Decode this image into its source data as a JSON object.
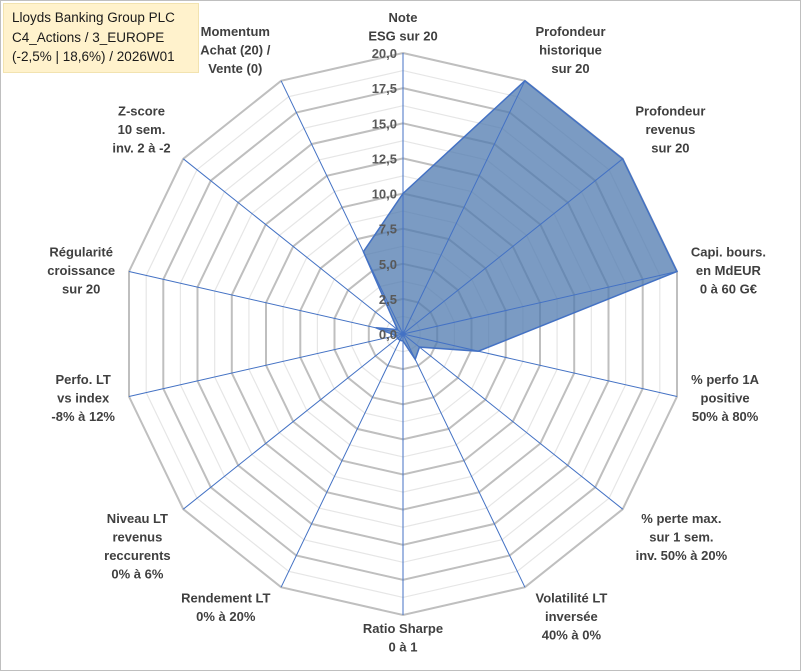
{
  "title": {
    "lines": [
      "Lloyds Banking Group PLC",
      "C4_Actions / 3_EUROPE",
      "(-2,5% | 18,6%) / 2026W01"
    ]
  },
  "chart_data": {
    "type": "radar",
    "rmin": 0,
    "rmax": 20,
    "ticks": [
      "0,0",
      "2,5",
      "5,0",
      "7,5",
      "10,0",
      "12,5",
      "15,0",
      "17,5",
      "20,0"
    ],
    "axes": [
      {
        "label": [
          "Note",
          "ESG sur 20"
        ],
        "value": 10.0
      },
      {
        "label": [
          "Profondeur",
          "historique",
          "sur 20"
        ],
        "value": 20.0
      },
      {
        "label": [
          "Profondeur",
          "revenus",
          "sur 20"
        ],
        "value": 20.0
      },
      {
        "label": [
          "Capi. bours.",
          "en MdEUR",
          "0 à 60 G€"
        ],
        "value": 20.0
      },
      {
        "label": [
          "% perfo 1A",
          "positive",
          "50% à 80%"
        ],
        "value": 5.5
      },
      {
        "label": [
          "% perte max.",
          "sur 1 sem.",
          "inv. 50% à 20%"
        ],
        "value": 1.5
      },
      {
        "label": [
          "Volatilité LT",
          "inversée",
          "40% à 0%"
        ],
        "value": 2.0
      },
      {
        "label": [
          "Ratio Sharpe",
          "0 à 1"
        ],
        "value": 0.5
      },
      {
        "label": [
          "Rendement LT",
          "0% à 20%"
        ],
        "value": 0.5
      },
      {
        "label": [
          "Niveau LT",
          "revenus",
          "reccurents",
          "0% à 6%"
        ],
        "value": 0.5
      },
      {
        "label": [
          "Perfo. LT",
          "vs index",
          "-8% à 12%"
        ],
        "value": 0.5
      },
      {
        "label": [
          "Régularité",
          "croissance",
          "sur 20"
        ],
        "value": 2.0
      },
      {
        "label": [
          "Z-score",
          "10 sem.",
          "inv. 2 à -2"
        ],
        "value": 0.5
      },
      {
        "label": [
          "Momentum",
          "Achat (20) /",
          "Vente (0)"
        ],
        "value": 6.5
      }
    ],
    "colors": {
      "fill": "#4f7aaf",
      "fill_opacity": 0.75,
      "stroke": "#4472c4",
      "grid_major": "#bfbfbf",
      "grid_minor": "#e6e6e6",
      "spoke": "#4472c4"
    }
  }
}
